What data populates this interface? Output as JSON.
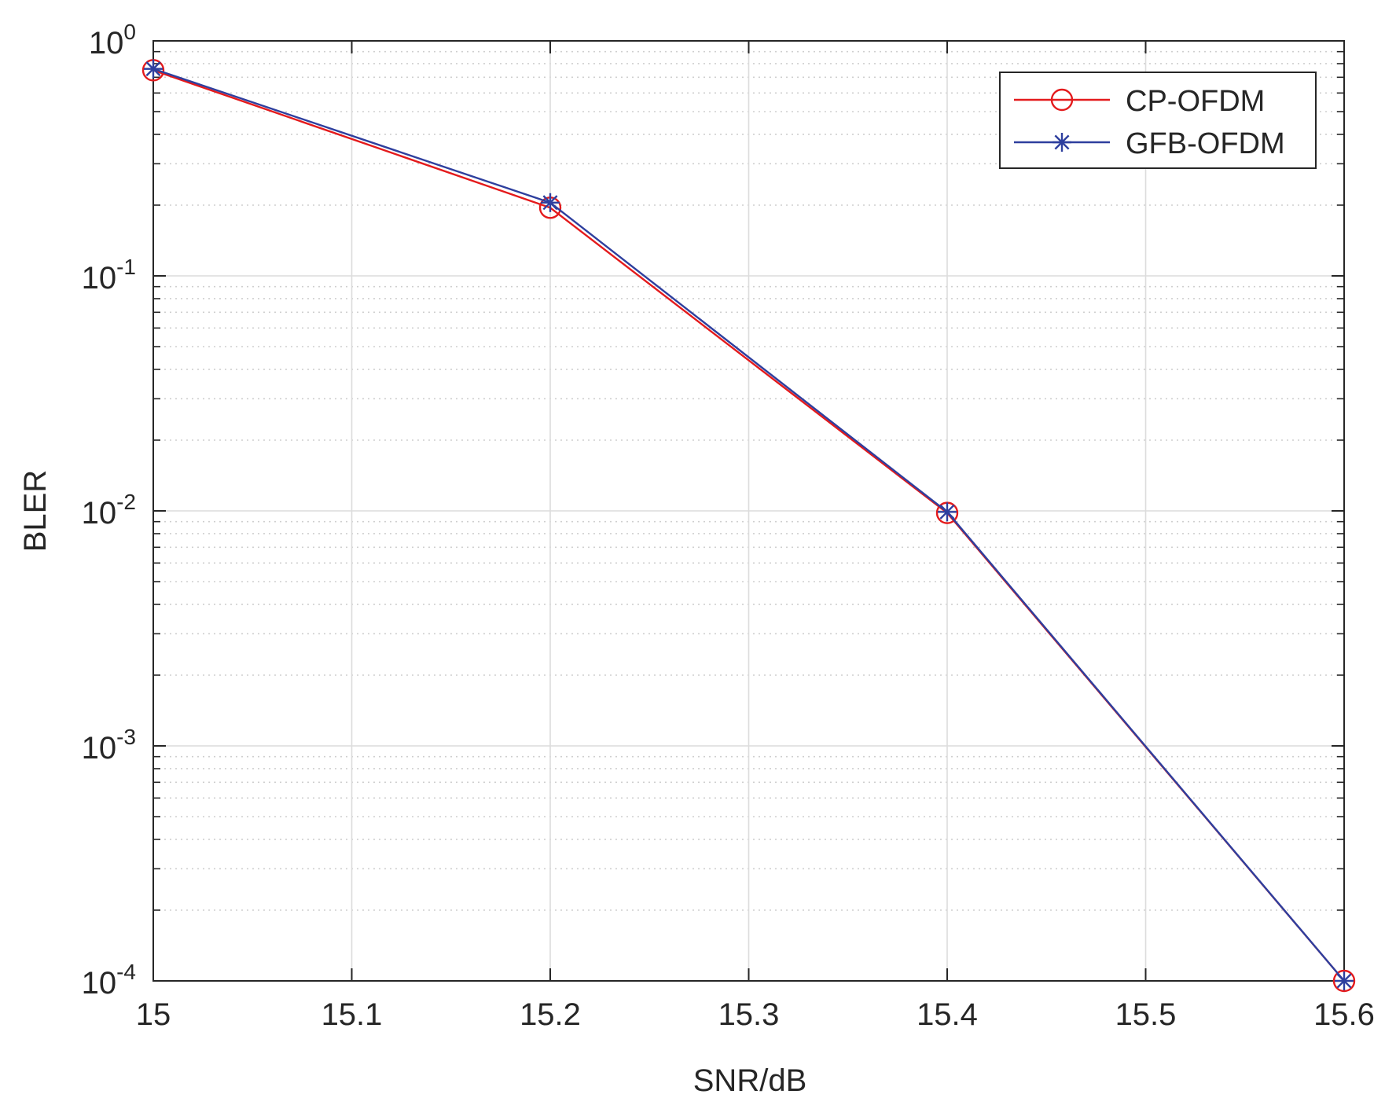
{
  "chart_data": {
    "type": "line",
    "title": "",
    "xlabel": "SNR/dB",
    "ylabel": "BLER",
    "xlim": [
      15,
      15.6
    ],
    "ylim": [
      0.0001,
      1
    ],
    "yscale": "log",
    "grid": true,
    "minor_grid": true,
    "legend_position": "top-right",
    "x_ticks": [
      "15",
      "15.1",
      "15.2",
      "15.3",
      "15.4",
      "15.5",
      "15.6"
    ],
    "y_ticks": [
      {
        "base": "10",
        "exp": "-4"
      },
      {
        "base": "10",
        "exp": "-3"
      },
      {
        "base": "10",
        "exp": "-2"
      },
      {
        "base": "10",
        "exp": "-1"
      },
      {
        "base": "10",
        "exp": "0"
      }
    ],
    "series": [
      {
        "name": "CP-OFDM",
        "color": "#e41a1c",
        "marker": "circle",
        "x": [
          15,
          15.2,
          15.4,
          15.6
        ],
        "y": [
          0.75,
          0.195,
          0.0098,
          0.0001
        ]
      },
      {
        "name": "GFB-OFDM",
        "color": "#2e3f9e",
        "marker": "asterisk",
        "x": [
          15,
          15.2,
          15.4,
          15.6
        ],
        "y": [
          0.76,
          0.205,
          0.0099,
          0.0001
        ]
      }
    ]
  }
}
